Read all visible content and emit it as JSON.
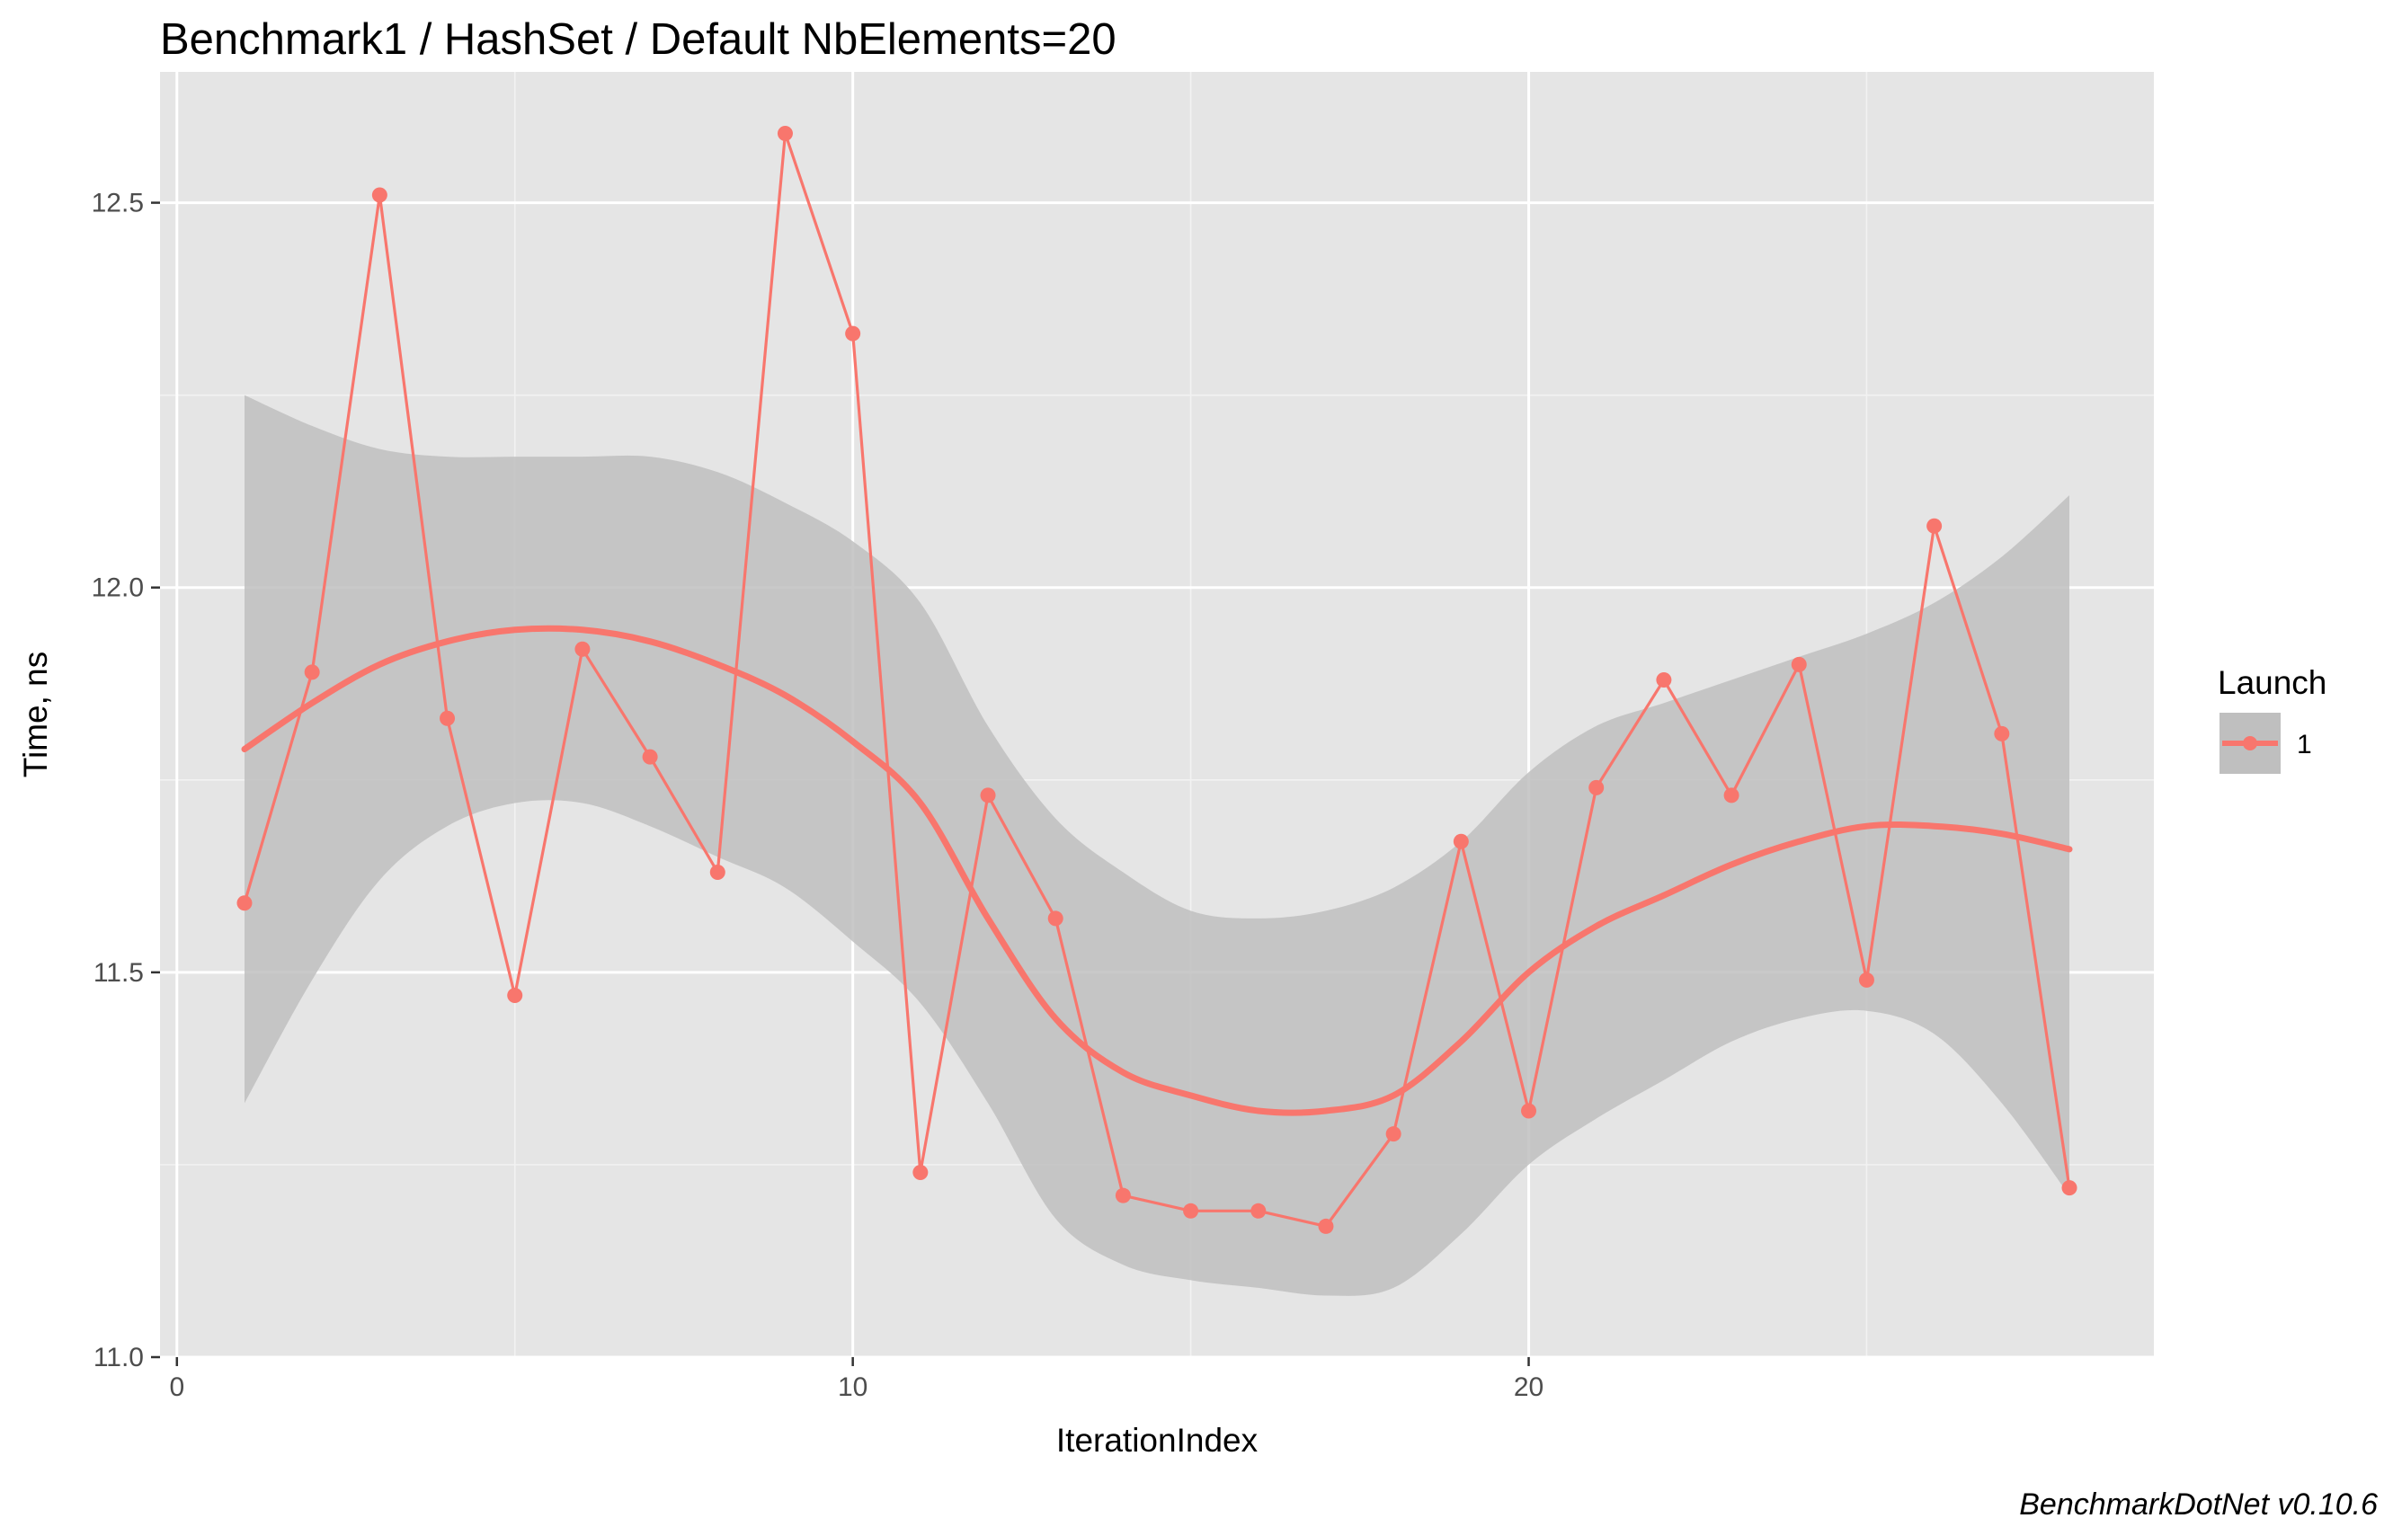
{
  "chart_data": {
    "type": "line",
    "title": "Benchmark1 / HashSet / Default NbElements=20",
    "xlabel": "IterationIndex",
    "ylabel": "Time, ns",
    "xlim": [
      -0.25,
      29.25
    ],
    "ylim": [
      11.0,
      12.67
    ],
    "x_ticks": [
      0,
      10,
      20
    ],
    "x_tick_labels": [
      "0",
      "10",
      "20"
    ],
    "y_ticks": [
      11.0,
      11.5,
      12.0,
      12.5
    ],
    "y_tick_labels": [
      "11.0",
      "11.5",
      "12.0",
      "12.5"
    ],
    "grid": true,
    "legend": {
      "title": "Launch",
      "position": "right",
      "entries": [
        {
          "label": "1",
          "color": "#f8766d"
        }
      ]
    },
    "series": [
      {
        "name": "1",
        "color": "#f8766d",
        "x": [
          1,
          2,
          3,
          4,
          5,
          6,
          7,
          8,
          9,
          10,
          11,
          12,
          13,
          14,
          15,
          16,
          17,
          18,
          19,
          20,
          21,
          22,
          23,
          24,
          25,
          26,
          27,
          28
        ],
        "values": [
          11.59,
          11.89,
          12.51,
          11.83,
          11.47,
          11.92,
          11.78,
          11.63,
          12.59,
          12.33,
          11.24,
          11.73,
          11.57,
          11.21,
          11.19,
          11.19,
          11.17,
          11.29,
          11.67,
          11.32,
          11.74,
          11.88,
          11.73,
          11.9,
          11.49,
          12.08,
          11.81,
          11.22
        ]
      }
    ],
    "smooth": {
      "color": "#f8766d",
      "band_color": "#bfbfbf",
      "x": [
        1,
        2,
        3,
        4,
        5,
        6,
        7,
        8,
        9,
        10,
        11,
        12,
        13,
        14,
        15,
        16,
        17,
        18,
        19,
        20,
        21,
        22,
        23,
        24,
        25,
        26,
        27,
        28
      ],
      "fit": [
        11.79,
        11.85,
        11.9,
        11.93,
        11.945,
        11.945,
        11.93,
        11.9,
        11.86,
        11.8,
        11.72,
        11.57,
        11.44,
        11.37,
        11.34,
        11.32,
        11.32,
        11.34,
        11.41,
        11.5,
        11.56,
        11.6,
        11.64,
        11.67,
        11.69,
        11.69,
        11.68,
        11.66
      ],
      "upper": [
        12.25,
        12.21,
        12.18,
        12.17,
        12.17,
        12.17,
        12.17,
        12.15,
        12.11,
        12.06,
        11.98,
        11.82,
        11.7,
        11.63,
        11.58,
        11.57,
        11.58,
        11.61,
        11.67,
        11.76,
        11.82,
        11.85,
        11.88,
        11.91,
        11.94,
        11.98,
        12.04,
        12.12
      ],
      "lower": [
        11.33,
        11.49,
        11.62,
        11.69,
        11.72,
        11.72,
        11.69,
        11.65,
        11.61,
        11.54,
        11.46,
        11.33,
        11.18,
        11.12,
        11.1,
        11.09,
        11.08,
        11.09,
        11.16,
        11.25,
        11.31,
        11.36,
        11.41,
        11.44,
        11.45,
        11.42,
        11.33,
        11.21
      ]
    },
    "caption": "BenchmarkDotNet v0.10.6"
  }
}
